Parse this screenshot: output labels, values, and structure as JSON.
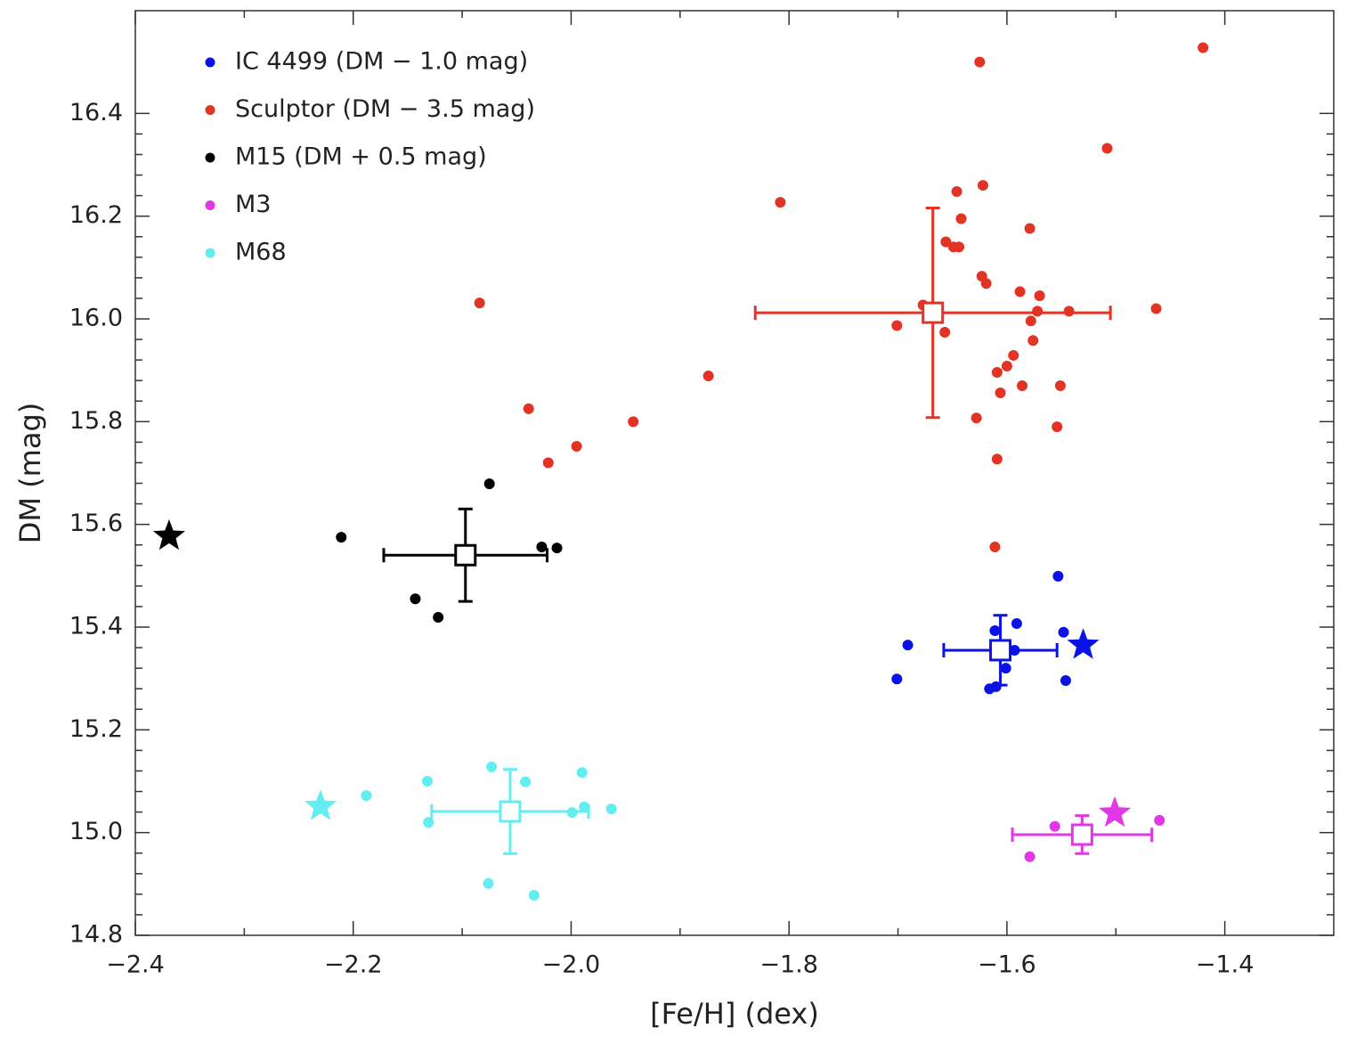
{
  "chart_data": {
    "type": "scatter",
    "x_label": "[Fe/H] (dex)",
    "y_label": "DM (mag)",
    "xlim": [
      -2.4,
      -1.3
    ],
    "ylim": [
      14.8,
      16.6
    ],
    "xticks": [
      {
        "value": -2.4,
        "label": "−2.4"
      },
      {
        "value": -2.2,
        "label": "−2.2"
      },
      {
        "value": -2.0,
        "label": "−2.0"
      },
      {
        "value": -1.8,
        "label": "−1.8"
      },
      {
        "value": -1.6,
        "label": "−1.6"
      },
      {
        "value": -1.4,
        "label": "−1.4"
      }
    ],
    "yticks": [
      14.8,
      {
        "value": 15.0,
        "label": "15.0"
      },
      15.2,
      15.4,
      15.6,
      15.8,
      {
        "value": 16.0,
        "label": "16.0"
      },
      16.2,
      16.4
    ],
    "legend": "upper left",
    "series": [
      {
        "name": "IC 4499 (DM − 1.0 mag)",
        "color": "#0a12e6",
        "x": [
          -1.553,
          -1.591,
          -1.611,
          -1.691,
          -1.548,
          -1.593,
          -1.601,
          -1.701,
          -1.546,
          -1.616,
          -1.61
        ],
        "values": [
          15.499,
          15.407,
          15.393,
          15.365,
          15.39,
          15.355,
          15.32,
          15.299,
          15.296,
          15.28,
          15.284
        ],
        "star": {
          "x": -1.53,
          "y": 15.365
        },
        "mean": {
          "x": -1.606,
          "y": 15.355,
          "xerr": 0.052,
          "yerr": 0.068
        }
      },
      {
        "name": "Sculptor (DM − 3.5 mag)",
        "color": "#e23424",
        "x": [
          -1.42,
          -1.625,
          -1.808,
          -1.646,
          -1.622,
          -1.642,
          -1.579,
          -1.656,
          -1.649,
          -1.644,
          -1.623,
          -1.619,
          -1.508,
          -2.084,
          -1.677,
          -1.588,
          -1.57,
          -1.572,
          -1.543,
          -1.463,
          -1.701,
          -1.578,
          -1.657,
          -1.576,
          -1.594,
          -1.6,
          -1.609,
          -1.874,
          -1.586,
          -1.551,
          -1.606,
          -2.039,
          -1.943,
          -1.628,
          -1.554,
          -1.995,
          -2.021,
          -1.609,
          -1.611
        ],
        "values": [
          16.528,
          16.5,
          16.227,
          16.248,
          16.26,
          16.195,
          16.176,
          16.15,
          16.14,
          16.14,
          16.083,
          16.069,
          16.332,
          16.031,
          16.027,
          16.053,
          16.045,
          16.015,
          16.015,
          16.02,
          15.987,
          15.996,
          15.974,
          15.958,
          15.929,
          15.908,
          15.896,
          15.889,
          15.87,
          15.87,
          15.856,
          15.825,
          15.8,
          15.807,
          15.79,
          15.752,
          15.72,
          15.727,
          15.556
        ],
        "mean": {
          "x": -1.668,
          "y": 16.012,
          "xerr": 0.163,
          "yerr": 0.204
        }
      },
      {
        "name": "M15 (DM + 0.5 mag)",
        "color": "#000000",
        "x": [
          -2.075,
          -2.211,
          -2.027,
          -2.013,
          -2.143,
          -2.122
        ],
        "values": [
          15.679,
          15.575,
          15.556,
          15.554,
          15.455,
          15.419
        ],
        "star": {
          "x": -2.369,
          "y": 15.577
        },
        "mean": {
          "x": -2.097,
          "y": 15.54,
          "xerr": 0.075,
          "yerr": 0.09
        }
      },
      {
        "name": "M3",
        "color": "#e237e6",
        "x": [
          -1.556,
          -1.579,
          -1.46
        ],
        "values": [
          15.012,
          14.953,
          15.024
        ],
        "star": {
          "x": -1.501,
          "y": 15.038
        },
        "mean": {
          "x": -1.531,
          "y": 14.996,
          "xerr": 0.064,
          "yerr": 0.037
        }
      },
      {
        "name": "M68",
        "color": "#62eef0",
        "x": [
          -2.073,
          -1.99,
          -2.132,
          -2.042,
          -2.188,
          -1.988,
          -1.963,
          -1.999,
          -2.131,
          -2.076,
          -2.034
        ],
        "values": [
          15.128,
          15.117,
          15.1,
          15.099,
          15.072,
          15.05,
          15.046,
          15.039,
          15.02,
          14.901,
          14.878
        ],
        "star": {
          "x": -2.23,
          "y": 15.051
        },
        "mean": {
          "x": -2.056,
          "y": 15.041,
          "xerr": 0.072,
          "yerr": 0.082
        }
      }
    ]
  }
}
